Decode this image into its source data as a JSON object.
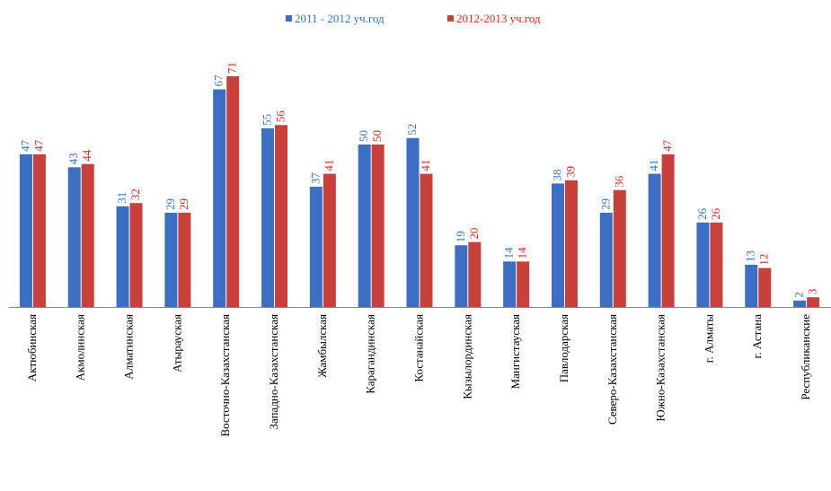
{
  "chart_data": {
    "type": "bar",
    "categories": [
      "Актюбинская",
      "Акмолинская",
      "Алматинская",
      "Атырауская",
      "Восточно-Казахстанская",
      "Западно-Казахстанская",
      "Жамбылская",
      "Карагандинская",
      "Костанайская",
      "Кызылординская",
      "Мангистауская",
      "Павлодарская",
      "Северо-Казахстанская",
      "Южно-Казахстанская",
      "г. Алматы",
      "г. Астана",
      "Республиканские"
    ],
    "series": [
      {
        "name": "2011 - 2012 уч.год",
        "color": "#3a6fc4",
        "label_color": "#2e75c6",
        "values": [
          47,
          43,
          31,
          29,
          67,
          55,
          37,
          50,
          52,
          19,
          14,
          38,
          29,
          41,
          26,
          13,
          2
        ]
      },
      {
        "name": "2012-2013 уч.год",
        "color": "#c9403a",
        "label_color": "#e8241e",
        "values": [
          47,
          44,
          32,
          29,
          71,
          56,
          41,
          50,
          41,
          20,
          14,
          39,
          36,
          47,
          26,
          12,
          3
        ]
      }
    ],
    "legend": "top"
  }
}
